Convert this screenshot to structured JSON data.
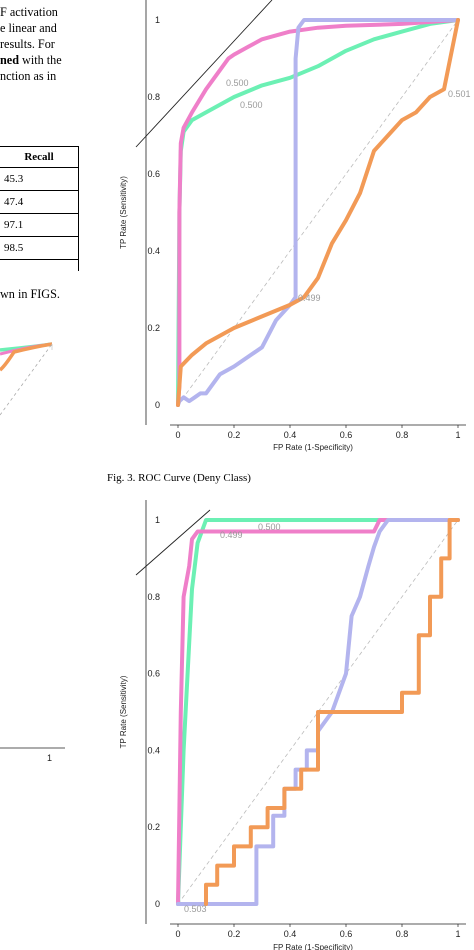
{
  "left_text": {
    "line1": "F activation",
    "line2": "e linear and",
    "line3": "results. For",
    "line4_bold": "ned",
    "line4_rest": " with the",
    "line5": "nction as in",
    "below_table": "wn in FIGS."
  },
  "table": {
    "header": "Recall",
    "rows": [
      "45.3",
      "47.4",
      "97.1",
      "98.5"
    ]
  },
  "left_chart": {
    "x_tick": "1"
  },
  "figure3": {
    "caption": "Fig. 3.   ROC Curve (Deny Class)"
  },
  "chart_data": [
    {
      "type": "line",
      "x_label": "FP Rate (1-Specificity)",
      "y_label": "TP Rate (Sensitivity)",
      "x_ticks": [
        "0",
        "0.2",
        "0.4",
        "0.6",
        "0.8",
        "1"
      ],
      "y_ticks": [
        "0",
        "0.2",
        "0.4",
        "0.6",
        "0.8",
        "1"
      ],
      "xlim": [
        0,
        1
      ],
      "ylim": [
        0,
        1
      ],
      "series": [
        {
          "color": "#6cf0b4",
          "x": [
            0,
            0.005,
            0.01,
            0.02,
            0.03,
            0.05,
            0.1,
            0.2,
            0.3,
            0.4,
            0.5,
            0.6,
            0.7,
            0.8,
            0.9,
            1
          ],
          "y": [
            0,
            0.5,
            0.66,
            0.71,
            0.72,
            0.74,
            0.76,
            0.8,
            0.83,
            0.85,
            0.88,
            0.92,
            0.95,
            0.97,
            0.99,
            1
          ]
        },
        {
          "color": "#ef7fc9",
          "x": [
            0,
            0.005,
            0.005,
            0.01,
            0.02,
            0.05,
            0.1,
            0.15,
            0.18,
            0.2,
            0.25,
            0.3,
            0.4,
            0.5,
            0.6,
            0.8,
            1
          ],
          "y": [
            0,
            0.05,
            0.5,
            0.68,
            0.72,
            0.76,
            0.82,
            0.87,
            0.9,
            0.91,
            0.93,
            0.95,
            0.97,
            0.98,
            0.985,
            0.99,
            1
          ]
        },
        {
          "color": "#b3b4ee",
          "x": [
            0,
            0.005,
            0.02,
            0.04,
            0.06,
            0.08,
            0.1,
            0.15,
            0.2,
            0.3,
            0.35,
            0.4,
            0.42,
            0.42,
            0.43,
            0.45,
            0.5,
            0.6,
            0.8,
            1
          ],
          "y": [
            0,
            0.01,
            0.02,
            0.01,
            0.02,
            0.03,
            0.03,
            0.08,
            0.1,
            0.15,
            0.22,
            0.26,
            0.28,
            0.9,
            0.98,
            1,
            1,
            1,
            1,
            1
          ]
        },
        {
          "color": "#f29a56",
          "x": [
            0,
            0.005,
            0.01,
            0.05,
            0.1,
            0.2,
            0.3,
            0.4,
            0.45,
            0.5,
            0.55,
            0.6,
            0.65,
            0.7,
            0.75,
            0.8,
            0.85,
            0.9,
            0.95,
            1
          ],
          "y": [
            0,
            0.05,
            0.1,
            0.13,
            0.16,
            0.2,
            0.23,
            0.26,
            0.28,
            0.33,
            0.42,
            0.48,
            0.55,
            0.66,
            0.7,
            0.74,
            0.76,
            0.8,
            0.82,
            1
          ]
        }
      ],
      "threshold_labels": [
        "0.500",
        "0.500",
        "0.501",
        "0.499"
      ]
    },
    {
      "type": "line",
      "x_label": "FP Rate (1-Specificity)",
      "y_label": "TP Rate (Sensitivity)",
      "x_ticks": [
        "0",
        "0.2",
        "0.4",
        "0.6",
        "0.8",
        "1"
      ],
      "y_ticks": [
        "0",
        "0.2",
        "0.4",
        "0.6",
        "0.8",
        "1"
      ],
      "xlim": [
        0,
        1
      ],
      "ylim": [
        0,
        1
      ],
      "series": [
        {
          "color": "#6cf0b4",
          "x": [
            0,
            0.02,
            0.04,
            0.05,
            0.07,
            0.1,
            0.5,
            0.72,
            1
          ],
          "y": [
            0,
            0.4,
            0.68,
            0.82,
            0.94,
            1,
            1,
            1,
            1
          ]
        },
        {
          "color": "#ef7fc9",
          "x": [
            0,
            0.01,
            0.02,
            0.04,
            0.05,
            0.07,
            0.1,
            0.3,
            0.5,
            0.7,
            0.72,
            1
          ],
          "y": [
            0,
            0.5,
            0.8,
            0.88,
            0.95,
            0.97,
            0.97,
            0.97,
            0.97,
            0.97,
            1,
            1
          ]
        },
        {
          "color": "#b3b4ee",
          "x": [
            0,
            0.28,
            0.28,
            0.34,
            0.34,
            0.38,
            0.38,
            0.42,
            0.42,
            0.46,
            0.46,
            0.5,
            0.5,
            0.55,
            0.6,
            0.62,
            0.65,
            0.68,
            0.7,
            0.72,
            0.75,
            1
          ],
          "y": [
            0,
            0,
            0.15,
            0.15,
            0.23,
            0.23,
            0.3,
            0.3,
            0.35,
            0.35,
            0.4,
            0.4,
            0.45,
            0.5,
            0.6,
            0.75,
            0.8,
            0.88,
            0.93,
            0.97,
            1,
            1
          ]
        },
        {
          "color": "#f29a56",
          "x": [
            0.1,
            0.1,
            0.14,
            0.14,
            0.2,
            0.2,
            0.26,
            0.26,
            0.32,
            0.32,
            0.38,
            0.38,
            0.44,
            0.44,
            0.5,
            0.5,
            0.6,
            0.72,
            0.8,
            0.8,
            0.86,
            0.86,
            0.9,
            0.9,
            0.94,
            0.94,
            0.97,
            0.97,
            1
          ],
          "y": [
            0,
            0.05,
            0.05,
            0.1,
            0.1,
            0.15,
            0.15,
            0.2,
            0.2,
            0.25,
            0.25,
            0.3,
            0.3,
            0.35,
            0.35,
            0.5,
            0.5,
            0.5,
            0.5,
            0.55,
            0.55,
            0.7,
            0.7,
            0.8,
            0.8,
            0.9,
            0.9,
            1,
            1
          ]
        }
      ],
      "threshold_labels": [
        "0.499",
        "0.500",
        "0.503"
      ]
    }
  ]
}
